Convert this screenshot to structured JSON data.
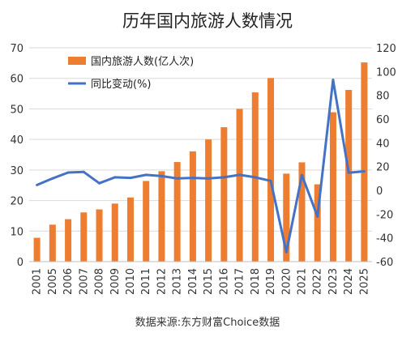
{
  "chart_data": {
    "type": "bar",
    "title": "历年国内旅游人数情况",
    "source": "数据来源:东方财富Choice数据",
    "categories": [
      "2001",
      "2005",
      "2006",
      "2007",
      "2008",
      "2009",
      "2010",
      "2011",
      "2012",
      "2013",
      "2014",
      "2015",
      "2016",
      "2017",
      "2018",
      "2019",
      "2020",
      "2021",
      "2022",
      "2023",
      "2024",
      "2025"
    ],
    "series": [
      {
        "name": "国内旅游人数(亿人次)",
        "type": "bar",
        "axis": "left",
        "color": "#ED7D31",
        "values": [
          7.8,
          12.1,
          13.9,
          16.1,
          17.1,
          19.0,
          21.0,
          26.4,
          29.6,
          32.6,
          36.1,
          40.0,
          44.0,
          50.0,
          55.4,
          60.1,
          28.8,
          32.5,
          25.3,
          48.9,
          56.2,
          65.2
        ]
      },
      {
        "name": "同比变动(%)",
        "type": "line",
        "axis": "right",
        "color": "#4472C4",
        "values": [
          4.5,
          10.0,
          15.0,
          15.5,
          6.0,
          11.0,
          10.5,
          13.0,
          12.0,
          10.0,
          10.5,
          10.0,
          11.0,
          13.0,
          11.0,
          8.0,
          -52.0,
          12.8,
          -22.0,
          93.0,
          14.8,
          16.0
        ]
      }
    ],
    "y_left": {
      "min": 0,
      "max": 70,
      "step": 10
    },
    "y_right": {
      "min": -60,
      "max": 120,
      "step": 20
    },
    "grid": true,
    "legend_position": "top-left"
  }
}
